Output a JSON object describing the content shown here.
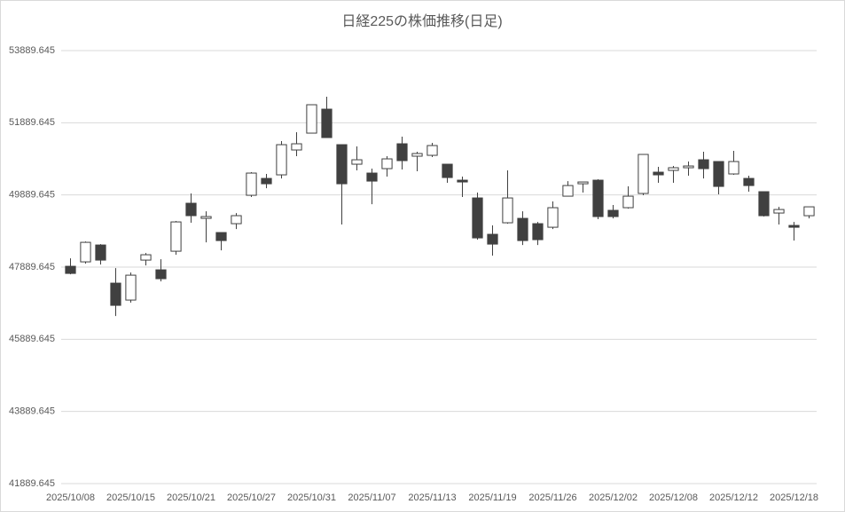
{
  "chart_data": {
    "type": "candlestick",
    "title": "日経225の株価推移(日足)",
    "categories": [
      "2025/10/08",
      null,
      null,
      null,
      "2025/10/15",
      null,
      null,
      null,
      "2025/10/21",
      null,
      null,
      null,
      "2025/10/27",
      null,
      null,
      null,
      "2025/10/31",
      null,
      null,
      null,
      "2025/11/07",
      null,
      null,
      null,
      "2025/11/13",
      null,
      null,
      null,
      "2025/11/19",
      null,
      null,
      null,
      "2025/11/26",
      null,
      null,
      null,
      "2025/12/02",
      null,
      null,
      null,
      "2025/12/08",
      null,
      null,
      null,
      "2025/12/12",
      null,
      null,
      null,
      "2025/12/18",
      null
    ],
    "open": [
      47912,
      48035,
      48502,
      47445,
      46977,
      48084,
      47814,
      48330,
      49659,
      49240,
      48847,
      49093,
      49880,
      50347,
      50446,
      51135,
      51602,
      52266,
      51282,
      50741,
      50495,
      50618,
      51307,
      50963,
      50987,
      50741,
      50298,
      49806,
      48798,
      49118,
      49240,
      49093,
      48994,
      49855,
      50199,
      50298,
      49462,
      49536,
      49930,
      50520,
      50569,
      50643,
      50864,
      50815,
      50471,
      50347,
      49979,
      49388,
      49044,
      49314
    ],
    "high": [
      48133,
      48600,
      48527,
      47863,
      47740,
      48281,
      48109,
      49167,
      49930,
      49437,
      48847,
      49388,
      50520,
      50471,
      51381,
      51627,
      52389,
      52611,
      51282,
      51233,
      50618,
      50963,
      51504,
      51086,
      51332,
      50741,
      50397,
      49954,
      49044,
      50569,
      49437,
      49142,
      49708,
      50273,
      50249,
      50323,
      49610,
      50126,
      51012,
      50667,
      50692,
      50815,
      51086,
      50815,
      51110,
      50421,
      49979,
      49560,
      49142,
      49560
    ],
    "low": [
      47690,
      47986,
      47961,
      46534,
      46903,
      47937,
      47494,
      48232,
      49118,
      48576,
      48355,
      48945,
      49831,
      50076,
      50347,
      50963,
      51602,
      51479,
      49069,
      50569,
      49634,
      50397,
      50594,
      50545,
      50938,
      50225,
      49831,
      48650,
      48207,
      49093,
      48502,
      48502,
      48945,
      49855,
      49954,
      49216,
      49240,
      49511,
      49880,
      50225,
      50225,
      50421,
      50347,
      49905,
      50446,
      49979,
      49290,
      49069,
      48625,
      49240
    ],
    "close": [
      47715,
      48576,
      48084,
      46830,
      47666,
      48232,
      47568,
      49142,
      49315,
      49290,
      48625,
      49315,
      50495,
      50199,
      51282,
      51307,
      52389,
      51479,
      50199,
      50864,
      50273,
      50889,
      50840,
      51037,
      51258,
      50372,
      50249,
      48699,
      48527,
      49806,
      48625,
      48650,
      49536,
      50150,
      50249,
      49290,
      49290,
      49855,
      51012,
      50446,
      50643,
      50692,
      50618,
      50126,
      50815,
      50150,
      49314,
      49486,
      48994,
      49560
    ],
    "up_color": "#ffffff",
    "down_color": "#404040",
    "edge_color": "#404040",
    "ylim": [
      41889.645,
      53889.645
    ],
    "yticks": [
      41889.645,
      43889.645,
      45889.645,
      47889.645,
      49889.645,
      51889.645,
      53889.645
    ],
    "grid": true
  }
}
